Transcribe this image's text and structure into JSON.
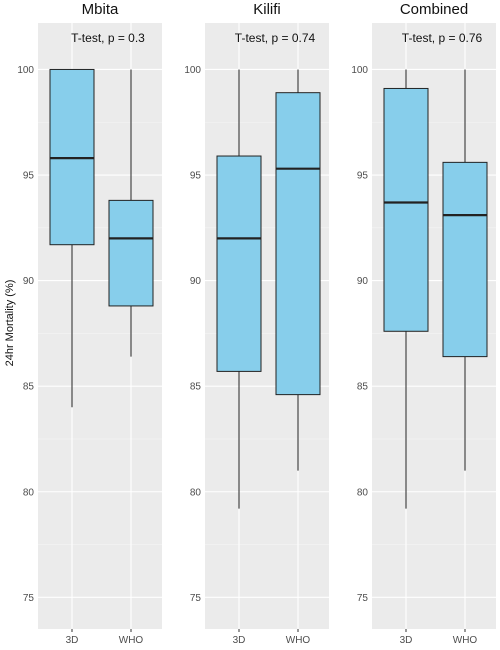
{
  "chart_data": {
    "type": "box",
    "ylabel": "24hr Mortality (%)",
    "ylim": [
      73.5,
      102.2
    ],
    "yticks": [
      75,
      80,
      85,
      90,
      95,
      100
    ],
    "categories": [
      "3D",
      "WHO"
    ],
    "fill_color": "#87ceeb",
    "panel_color": "#ebebeb",
    "grid": true,
    "panels": [
      {
        "title": "Mbita",
        "annotation": "T-test, p = 0.3",
        "boxes": [
          {
            "category": "3D",
            "min": 84.0,
            "q1": 91.7,
            "median": 95.8,
            "q3": 100.0,
            "max": 100.0
          },
          {
            "category": "WHO",
            "min": 86.4,
            "q1": 88.8,
            "median": 92.0,
            "q3": 93.8,
            "max": 100.0
          }
        ]
      },
      {
        "title": "Kilifi",
        "annotation": "T-test, p = 0.74",
        "boxes": [
          {
            "category": "3D",
            "min": 79.2,
            "q1": 85.7,
            "median": 92.0,
            "q3": 95.9,
            "max": 100.0
          },
          {
            "category": "WHO",
            "min": 81.0,
            "q1": 84.6,
            "median": 95.3,
            "q3": 98.9,
            "max": 100.0
          }
        ]
      },
      {
        "title": "Combined",
        "annotation": "T-test, p = 0.76",
        "boxes": [
          {
            "category": "3D",
            "min": 79.2,
            "q1": 87.6,
            "median": 93.7,
            "q3": 99.1,
            "max": 100.0
          },
          {
            "category": "WHO",
            "min": 81.0,
            "q1": 86.4,
            "median": 93.1,
            "q3": 95.6,
            "max": 100.0
          }
        ]
      }
    ]
  }
}
